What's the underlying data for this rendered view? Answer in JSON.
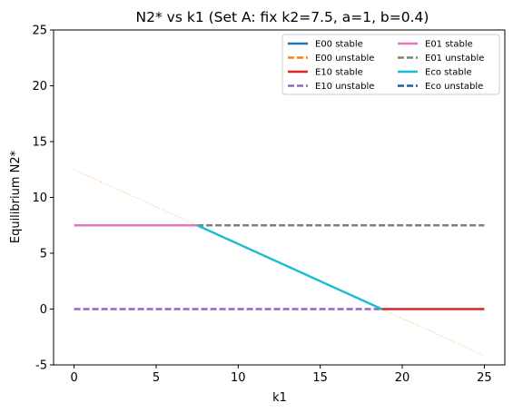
{
  "chart_data": {
    "type": "line",
    "title": "N2* vs k1 (Set A: fix k2=7.5, a=1, b=0.4)",
    "xlabel": "k1",
    "ylabel": "Equilibrium N2*",
    "xlim": [
      -1.25,
      26.25
    ],
    "ylim": [
      -5,
      25
    ],
    "xticks": [
      0,
      5,
      10,
      15,
      20,
      25
    ],
    "yticks": [
      -5,
      0,
      5,
      10,
      15,
      20,
      25
    ],
    "grid": false,
    "legend_placement": "top-right",
    "legend_columns": 2,
    "series": [
      {
        "name": "E00 stable",
        "color": "#1f77b4",
        "style": "solid",
        "points": []
      },
      {
        "name": "E00 unstable",
        "color": "#ff7f0e",
        "style": "dashed",
        "points": []
      },
      {
        "name": "E10 stable",
        "color": "#d62728",
        "style": "solid",
        "points": [
          [
            18.75,
            0
          ],
          [
            25,
            0
          ]
        ]
      },
      {
        "name": "E10 unstable",
        "color": "#9467bd",
        "style": "dashed",
        "points": [
          [
            0,
            0
          ],
          [
            18.75,
            0
          ]
        ]
      },
      {
        "name": "E01 stable",
        "color": "#e377c2",
        "style": "solid",
        "points": [
          [
            0,
            7.5
          ],
          [
            7.5,
            7.5
          ]
        ]
      },
      {
        "name": "E01 unstable",
        "color": "#7f7f7f",
        "style": "dashed",
        "points": [
          [
            7.5,
            7.5
          ],
          [
            25,
            7.5
          ]
        ]
      },
      {
        "name": "Eco stable",
        "color": "#17becf",
        "style": "solid",
        "points": [
          [
            7.5,
            7.5
          ],
          [
            18.75,
            0
          ]
        ]
      },
      {
        "name": "Eco unstable",
        "color": "#1f5f9f",
        "style": "dashed",
        "points": []
      }
    ],
    "extra_lines": [
      {
        "color": "#ffbb78",
        "style": "dotted",
        "points": [
          [
            0,
            12.5
          ],
          [
            25,
            -4.1667
          ]
        ]
      }
    ]
  }
}
